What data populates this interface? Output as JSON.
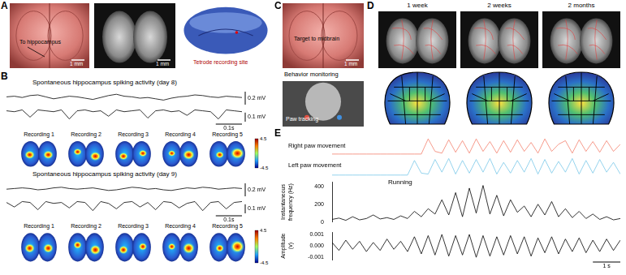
{
  "panels": {
    "A": {
      "letter": "A",
      "photo_label": "To hippocampus",
      "scale_labels": [
        "1 mm",
        "1 mm"
      ],
      "section_label": "Tetrode recording site"
    },
    "B": {
      "letter": "B",
      "days": [
        {
          "recordings": [
            "Recording 1",
            "Recording 2",
            "Recording 3",
            "Recording 4",
            "Recording 5"
          ],
          "colorbar_ticks": [
            -4.5,
            4.5
          ]
        },
        {
          "recordings": [
            "Recording 1",
            "Recording 2",
            "Recording 3",
            "Recording 4",
            "Recording 5"
          ],
          "colorbar_ticks": [
            -4.5,
            4.5
          ]
        }
      ]
    },
    "C": {
      "letter": "C",
      "photo_label": "Target to midbrain",
      "scale_label": "1 mm",
      "behavior_label": "Behavior monitoring",
      "tracking_label": "Paw tracking"
    },
    "D": {
      "letter": "D",
      "timepoints": [
        "1 week",
        "2 weeks",
        "2 months"
      ]
    },
    "E": {
      "letter": "E"
    }
  },
  "chart_data": [
    {
      "type": "line",
      "title": "Spontaneous hippocampus spiking activity (day 8)",
      "color": "#000000",
      "grid": false,
      "tick_labels": false,
      "x": [
        0,
        0.03,
        0.06,
        0.09,
        0.12,
        0.15,
        0.18,
        0.21,
        0.24,
        0.27,
        0.3,
        0.33,
        0.36,
        0.39,
        0.42,
        0.45,
        0.48,
        0.51,
        0.54,
        0.57,
        0.6,
        0.63,
        0.66,
        0.69,
        0.72,
        0.75,
        0.78,
        0.81,
        0.84,
        0.87,
        0.9
      ],
      "values": [
        0.02,
        0.03,
        0.01,
        0.04,
        0.05,
        0.02,
        -0.01,
        0.01,
        0.03,
        0.02,
        0.0,
        -0.02,
        0.01,
        0.04,
        0.06,
        0.03,
        0.02,
        0.0,
        0.01,
        -0.01,
        -0.03,
        0.0,
        0.02,
        0.03,
        0.05,
        0.04,
        0.02,
        0.01,
        0.03,
        0.02,
        0.01
      ],
      "xlim": [
        0,
        0.9
      ],
      "ylim": [
        -0.1,
        0.15
      ],
      "y_scale_bar": {
        "value": 0.2,
        "label": "0.2 mV"
      }
    },
    {
      "type": "line",
      "color": "#000000",
      "grid": false,
      "tick_labels": false,
      "x": [
        0,
        0.03,
        0.06,
        0.09,
        0.12,
        0.15,
        0.18,
        0.21,
        0.24,
        0.27,
        0.3,
        0.33,
        0.36,
        0.39,
        0.42,
        0.45,
        0.48,
        0.51,
        0.54,
        0.57,
        0.6,
        0.63,
        0.66,
        0.69,
        0.72,
        0.75,
        0.78,
        0.81,
        0.84,
        0.87,
        0.9
      ],
      "values": [
        0,
        -0.01,
        0.01,
        -0.07,
        0.01,
        0,
        -0.01,
        0.01,
        -0.09,
        0,
        0.01,
        -0.01,
        0,
        -0.06,
        0.01,
        -0.01,
        0,
        0.01,
        -0.08,
        0,
        0.01,
        -0.01,
        0,
        -0.05,
        0.01,
        0,
        -0.01,
        -0.09,
        0.01,
        0,
        -0.01
      ],
      "xlim": [
        0,
        0.9
      ],
      "ylim": [
        -0.12,
        0.05
      ],
      "y_scale_bar": {
        "value": 0.1,
        "label": "0.1 mV"
      },
      "x_scale_bar": {
        "value": 0.1,
        "label": "0.1s"
      }
    },
    {
      "type": "line",
      "title": "Spontaneous hippocampus spiking activity (day 9)",
      "color": "#000000",
      "grid": false,
      "tick_labels": false,
      "x": [
        0,
        0.03,
        0.06,
        0.09,
        0.12,
        0.15,
        0.18,
        0.21,
        0.24,
        0.27,
        0.3,
        0.33,
        0.36,
        0.39,
        0.42,
        0.45,
        0.48,
        0.51,
        0.54,
        0.57,
        0.6,
        0.63,
        0.66,
        0.69,
        0.72,
        0.75,
        0.78,
        0.81,
        0.84,
        0.87,
        0.9
      ],
      "values": [
        0.01,
        0.02,
        0.03,
        0.02,
        0.0,
        0.01,
        0.03,
        0.04,
        0.02,
        0.01,
        0.02,
        0.03,
        0.01,
        -0.01,
        0.0,
        0.02,
        0.04,
        0.03,
        0.01,
        0.02,
        0.0,
        -0.01,
        0.01,
        0.03,
        0.02,
        0.04,
        0.03,
        0.01,
        0.02,
        0.03,
        0.02
      ],
      "xlim": [
        0,
        0.9
      ],
      "ylim": [
        -0.1,
        0.15
      ],
      "y_scale_bar": {
        "value": 0.2,
        "label": "0.2 mV"
      }
    },
    {
      "type": "line",
      "color": "#000000",
      "grid": false,
      "tick_labels": false,
      "x": [
        0,
        0.03,
        0.06,
        0.09,
        0.12,
        0.15,
        0.18,
        0.21,
        0.24,
        0.27,
        0.3,
        0.33,
        0.36,
        0.39,
        0.42,
        0.45,
        0.48,
        0.51,
        0.54,
        0.57,
        0.6,
        0.63,
        0.66,
        0.69,
        0.72,
        0.75,
        0.78,
        0.81,
        0.84,
        0.87,
        0.9
      ],
      "values": [
        0,
        -0.05,
        0.01,
        0,
        -0.08,
        0.01,
        -0.01,
        0,
        -0.06,
        0.01,
        0,
        -0.09,
        0.01,
        -0.01,
        -0.07,
        0,
        0.01,
        -0.05,
        0,
        -0.08,
        0.01,
        0,
        -0.06,
        -0.01,
        0.01,
        -0.09,
        0,
        0.01,
        -0.07,
        0,
        0.01
      ],
      "xlim": [
        0,
        0.9
      ],
      "ylim": [
        -0.12,
        0.05
      ],
      "y_scale_bar": {
        "value": 0.1,
        "label": "0.1 mV"
      },
      "x_scale_bar": {
        "value": 0.1,
        "label": "0.1s"
      }
    },
    {
      "type": "line",
      "title": "Right paw movement",
      "color": "#f4826e",
      "grid": false,
      "tick_labels": false,
      "x": [
        0,
        0.25,
        0.5,
        0.75,
        1,
        1.25,
        1.5,
        1.75,
        2,
        2.25,
        2.5,
        2.75,
        3,
        3.25,
        3.5,
        3.75,
        4,
        4.25,
        4.5,
        4.75,
        5,
        5.25,
        5.5,
        5.75,
        6,
        6.25,
        6.5,
        6.75,
        7,
        7.25,
        7.5,
        7.75,
        8,
        8.25,
        8.5,
        8.75,
        9,
        9.25,
        9.5,
        9.75,
        10,
        10.25,
        10.5
      ],
      "values": [
        0.05,
        0.05,
        0.05,
        0.05,
        0.05,
        0.05,
        0.05,
        0.05,
        0.05,
        0.05,
        0.05,
        0.05,
        0.05,
        0.05,
        0.9,
        0.2,
        0.1,
        0.85,
        0.15,
        0.8,
        0.1,
        0.9,
        0.2,
        0.75,
        0.1,
        0.8,
        0.15,
        0.85,
        0.2,
        0.7,
        0.1,
        0.9,
        0.2,
        0.6,
        0.8,
        0.1,
        0.85,
        0.2,
        0.75,
        0.15,
        0.8,
        0.2,
        0.6
      ],
      "xlim": [
        0,
        10.5
      ],
      "ylim": [
        0,
        1
      ]
    },
    {
      "type": "line",
      "title": "Left paw movement",
      "color": "#79c8e8",
      "grid": false,
      "tick_labels": false,
      "x": [
        0,
        0.25,
        0.5,
        0.75,
        1,
        1.25,
        1.5,
        1.75,
        2,
        2.25,
        2.5,
        2.75,
        3,
        3.25,
        3.5,
        3.75,
        4,
        4.25,
        4.5,
        4.75,
        5,
        5.25,
        5.5,
        5.75,
        6,
        6.25,
        6.5,
        6.75,
        7,
        7.25,
        7.5,
        7.75,
        8,
        8.25,
        8.5,
        8.75,
        9,
        9.25,
        9.5,
        9.75,
        10,
        10.25,
        10.5
      ],
      "values": [
        0.05,
        0.05,
        0.05,
        0.05,
        0.05,
        0.05,
        0.05,
        0.05,
        0.05,
        0.05,
        0.05,
        0.05,
        0.8,
        0.15,
        0.1,
        0.85,
        0.2,
        0.9,
        0.1,
        0.8,
        0.15,
        0.85,
        0.2,
        0.9,
        0.1,
        0.7,
        0.15,
        0.8,
        0.2,
        0.9,
        0.1,
        0.85,
        0.15,
        0.75,
        0.2,
        0.9,
        0.1,
        0.8,
        0.15,
        0.85,
        0.2,
        0.7,
        0.1
      ],
      "xlim": [
        0,
        10.5
      ],
      "ylim": [
        0,
        1
      ]
    },
    {
      "type": "line",
      "ylabel": "Instantaneous frequency (Hz)",
      "annotations": [
        "Running"
      ],
      "color": "#000000",
      "grid": false,
      "tick_labels": "y",
      "x": [
        0,
        0.25,
        0.5,
        0.75,
        1,
        1.25,
        1.5,
        1.75,
        2,
        2.25,
        2.5,
        2.75,
        3,
        3.25,
        3.5,
        3.75,
        4,
        4.25,
        4.5,
        4.75,
        5,
        5.25,
        5.5,
        5.75,
        6,
        6.25,
        6.5,
        6.75,
        7,
        7.25,
        7.5,
        7.75,
        8,
        8.25,
        8.5,
        8.75,
        9,
        9.25,
        9.5,
        9.75,
        10,
        10.25,
        10.5
      ],
      "values": [
        30,
        45,
        20,
        60,
        25,
        40,
        80,
        35,
        50,
        30,
        70,
        40,
        120,
        60,
        150,
        90,
        250,
        80,
        330,
        60,
        380,
        100,
        410,
        90,
        300,
        70,
        250,
        110,
        180,
        60,
        200,
        80,
        230,
        60,
        150,
        50,
        120,
        40,
        90,
        30,
        60,
        25,
        40
      ],
      "xlim": [
        0,
        10.5
      ],
      "ylim": [
        0,
        450
      ],
      "yticks": [
        0,
        200,
        400
      ]
    },
    {
      "type": "line",
      "ylabel": "Amplitude (v)",
      "color": "#000000",
      "grid": false,
      "tick_labels": "y",
      "x": [
        0,
        0.25,
        0.5,
        0.75,
        1,
        1.25,
        1.5,
        1.75,
        2,
        2.25,
        2.5,
        2.75,
        3,
        3.25,
        3.5,
        3.75,
        4,
        4.25,
        4.5,
        4.75,
        5,
        5.25,
        5.5,
        5.75,
        6,
        6.25,
        6.5,
        6.75,
        7,
        7.25,
        7.5,
        7.75,
        8,
        8.25,
        8.5,
        8.75,
        9,
        9.25,
        9.5,
        9.75,
        10,
        10.25,
        10.5
      ],
      "values": [
        0.0003,
        -0.0004,
        0.0005,
        -0.0003,
        0.0004,
        -0.0005,
        0.0003,
        -0.0004,
        0.0006,
        -0.0003,
        0.0004,
        -0.0005,
        0.0008,
        -0.0007,
        0.0009,
        -0.0008,
        0.001,
        -0.0009,
        0.0009,
        -0.0008,
        0.001,
        -0.001,
        0.0009,
        -0.0009,
        0.0008,
        -0.0008,
        0.0009,
        -0.0007,
        0.0008,
        -0.0009,
        0.0007,
        -0.0006,
        0.0008,
        -0.0007,
        0.0006,
        -0.0005,
        0.0007,
        -0.0006,
        0.0005,
        -0.0005,
        0.0006,
        -0.0004,
        0.0005
      ],
      "xlim": [
        0,
        10.5
      ],
      "ylim": [
        -0.0012,
        0.0012
      ],
      "yticks": [
        -0.001,
        {
          "value": 0,
          "label": "0.000"
        },
        0.001
      ],
      "x_scale_bar": {
        "value": 1,
        "label": "1 s"
      }
    }
  ]
}
